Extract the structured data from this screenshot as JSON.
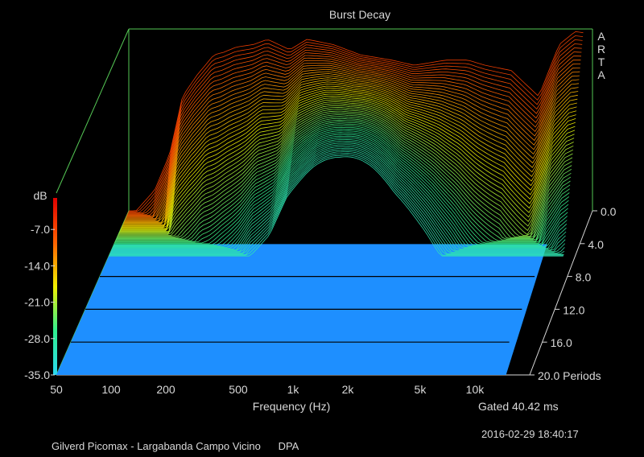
{
  "chart_data": {
    "type": "waterfall",
    "title": "Burst Decay",
    "xlabel": "Frequency (Hz)",
    "x_ticks": [
      "50",
      "100",
      "200",
      "500",
      "1k",
      "2k",
      "5k",
      "10k"
    ],
    "x_tick_values": [
      50,
      100,
      200,
      500,
      1000,
      2000,
      5000,
      10000
    ],
    "xlim": [
      50,
      20000
    ],
    "x_scale": "log",
    "zlabel": "dB",
    "z_ticks": [
      "-7.0",
      "-14.0",
      "-21.0",
      "-28.0",
      "-35.0"
    ],
    "zlim": [
      -35,
      0
    ],
    "y_ticks": [
      "0.0",
      "4.0",
      "8.0",
      "12.0",
      "16.0",
      "20.0 Periods"
    ],
    "ylim": [
      0,
      20
    ],
    "y_unit": "Periods",
    "colorscale": [
      "#2ad8f0",
      "#30f090",
      "#f0f000",
      "#ff6000",
      "#e00000"
    ],
    "floor_color": "#1e8fff",
    "frame_color": "#55c855",
    "initial_response": {
      "freq_hz": [
        55,
        70,
        85,
        100,
        120,
        150,
        170,
        200,
        250,
        300,
        400,
        500,
        700,
        1000,
        1500,
        2000,
        3000,
        4000,
        5000,
        7000,
        10000,
        13000,
        16000,
        20000
      ],
      "level_db": [
        -35,
        -31,
        -24,
        -13,
        -9,
        -5,
        -4.5,
        -3.5,
        -3,
        -2,
        -4,
        -2,
        -3,
        -5,
        -6,
        -7,
        -6,
        -6,
        -7,
        -8,
        -13,
        -3,
        -0.5,
        -1
      ]
    }
  },
  "gate_label": "Gated 40.42 ms",
  "timestamp": "2016-02-29  18:40:17",
  "caption": "Gilverd Picomax - Largabanda Campo Vicino      DPA",
  "brand_letters": [
    "A",
    "R",
    "T",
    "A"
  ]
}
